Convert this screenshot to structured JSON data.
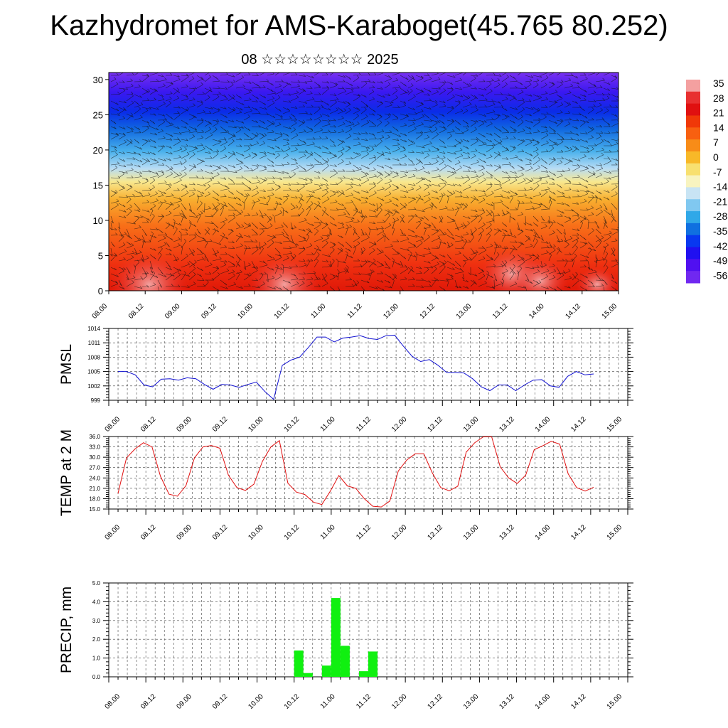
{
  "title": "Kazhydromet for AMS-Karaboget(45.765 80.252)",
  "subtitle": "08 ☆☆☆☆☆☆☆☆ 2025",
  "colorbar": {
    "labels": [
      "35",
      "28",
      "21",
      "14",
      "7",
      "0",
      "-7",
      "-14",
      "-21",
      "-28",
      "-35",
      "-42",
      "-49",
      "-56"
    ],
    "colors": [
      "#f4a0a0",
      "#e83030",
      "#e01010",
      "#f03808",
      "#f86010",
      "#f88c18",
      "#f8b828",
      "#f8e070",
      "#f8f4c0",
      "#c8e4f4",
      "#80c8f0",
      "#30a8e8",
      "#1070e0",
      "#0838f0",
      "#2010f0",
      "#5010f0",
      "#7028f0"
    ]
  },
  "chart_data": [
    {
      "type": "heatmap",
      "title": "",
      "ylabel": "",
      "ylim": [
        0,
        31
      ],
      "yticks": [
        "0",
        "5",
        "10",
        "15",
        "20",
        "25",
        "30"
      ],
      "xticks": [
        "08.00",
        "08.12",
        "09.00",
        "09.12",
        "10.00",
        "10.12",
        "11.00",
        "11.12",
        "12.00",
        "12.12",
        "13.00",
        "13.12",
        "14.00",
        "14.12",
        "15.00"
      ],
      "overlay": "wind barbs"
    },
    {
      "type": "line",
      "ylabel": "PMSL",
      "ylim": [
        999,
        1014
      ],
      "yticks": [
        "999",
        "1002",
        "1005",
        "1008",
        "1011",
        "1014"
      ],
      "xticks": [
        "08.00",
        "08.12",
        "09.00",
        "09.12",
        "10.00",
        "10.12",
        "11.00",
        "11.12",
        "12.00",
        "12.12",
        "13.00",
        "13.12",
        "14.00",
        "14.12",
        "15.00"
      ],
      "color": "#1010d0",
      "values": [
        1005,
        1005,
        1004.3,
        1002.2,
        1001.8,
        1003.4,
        1003.5,
        1003.2,
        1003.7,
        1003.5,
        1002.3,
        1001.3,
        1002.3,
        1002.2,
        1001.7,
        1002.3,
        1002.8,
        1000.8,
        999.2,
        1006.3,
        1007.4,
        1008,
        1010,
        1012.2,
        1012.2,
        1011.2,
        1012,
        1012.2,
        1012.5,
        1011.9,
        1011.7,
        1012.5,
        1012.6,
        1010.3,
        1008.2,
        1007.1,
        1007.5,
        1006.3,
        1004.8,
        1004.8,
        1004.7,
        1003.5,
        1001.8,
        1001,
        1002.2,
        1002.2,
        1001,
        1002.2,
        1003.2,
        1003.3,
        1002,
        1001.7,
        1004,
        1005,
        1004.3,
        1004.5
      ]
    },
    {
      "type": "line",
      "ylabel": "TEMP at 2 M",
      "ylim": [
        15,
        36
      ],
      "yticks": [
        "15.0",
        "18.0",
        "21.0",
        "24.0",
        "27.0",
        "30.0",
        "33.0",
        "36.0"
      ],
      "xticks": [
        "08.00",
        "08.12",
        "09.00",
        "09.12",
        "10.00",
        "10.12",
        "11.00",
        "11.12",
        "12.00",
        "12.12",
        "13.00",
        "13.12",
        "14.00",
        "14.12",
        "15.00"
      ],
      "color": "#e01010",
      "values": [
        19.5,
        29.8,
        32.4,
        34.2,
        33,
        24.5,
        19.3,
        18.7,
        21.8,
        29.8,
        33,
        33.4,
        32.6,
        24.8,
        21.2,
        20.4,
        22.2,
        28.8,
        33,
        34.8,
        22.5,
        19.9,
        19.2,
        17,
        16.3,
        20.2,
        24.7,
        21.7,
        21,
        18,
        15.8,
        15.6,
        17.3,
        26,
        29.2,
        31,
        31,
        25.5,
        21.2,
        20.3,
        21.6,
        31.5,
        34.2,
        35.9,
        35.9,
        27.2,
        24,
        22.4,
        24.8,
        32.2,
        33.3,
        34.6,
        33.8,
        25.2,
        21.2,
        20.2,
        21.3
      ]
    },
    {
      "type": "bar",
      "ylabel": "PRECIP, mm",
      "ylim": [
        0,
        5
      ],
      "yticks": [
        "0.0",
        "1.0",
        "2.0",
        "3.0",
        "4.0",
        "5.0"
      ],
      "xticks": [
        "08.00",
        "08.12",
        "09.00",
        "09.12",
        "10.00",
        "10.12",
        "11.00",
        "11.12",
        "12.00",
        "12.12",
        "13.00",
        "13.12",
        "14.00",
        "14.12",
        "15.00"
      ],
      "color": "#10f010",
      "bars": [
        {
          "x": 20.5,
          "value": 1.4
        },
        {
          "x": 21.5,
          "value": 0.2
        },
        {
          "x": 23.5,
          "value": 0.6
        },
        {
          "x": 24.5,
          "value": 4.2
        },
        {
          "x": 25.5,
          "value": 1.65
        },
        {
          "x": 27.5,
          "value": 0.3
        },
        {
          "x": 28.5,
          "value": 1.35
        }
      ]
    }
  ]
}
